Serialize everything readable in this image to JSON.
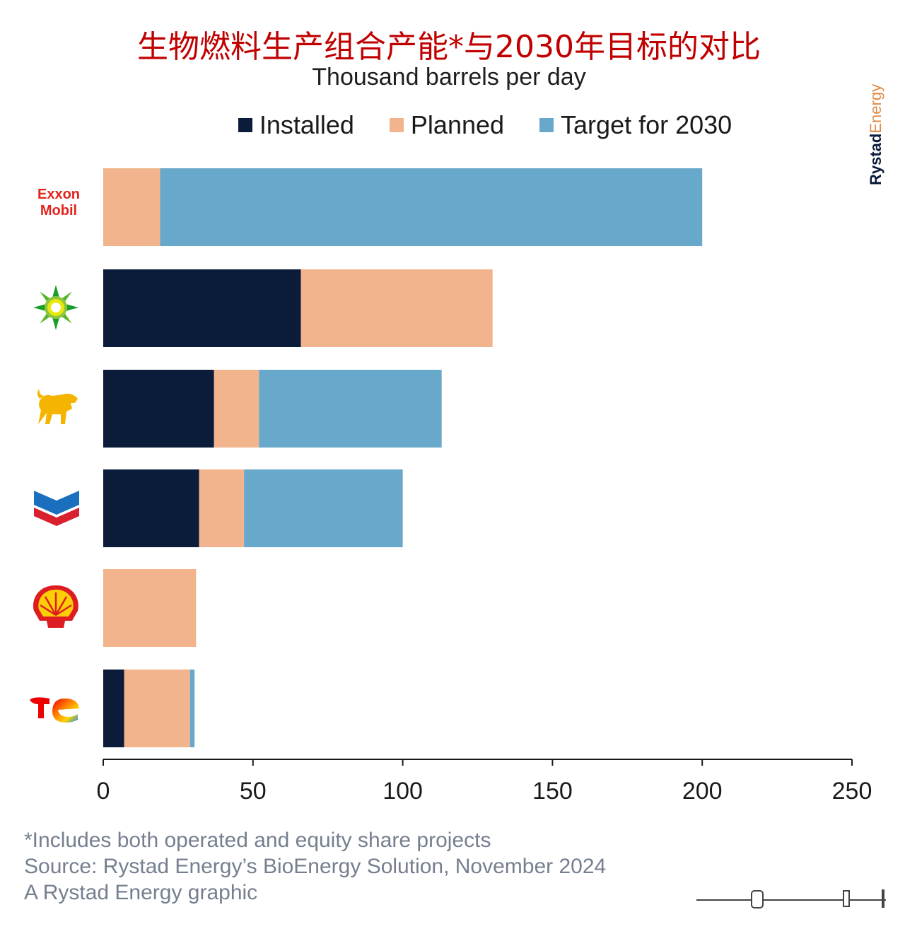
{
  "title": "生物燃料生产组合产能*与2030年目标的对比",
  "subtitle": "Thousand barrels per day",
  "brand": {
    "part1": "Rystad",
    "part2": "Energy"
  },
  "colors": {
    "installed": "#0b1b3a",
    "planned": "#f2b48c",
    "target": "#68a9cb"
  },
  "chart_data": {
    "type": "bar",
    "orientation": "horizontal",
    "stacked": true,
    "categories": [
      "ExxonMobil",
      "bp",
      "Eni",
      "Chevron",
      "Shell",
      "TotalEnergies"
    ],
    "series": [
      {
        "name": "Installed",
        "values": [
          0,
          66,
          37,
          32,
          0,
          7
        ]
      },
      {
        "name": "Planned",
        "values": [
          19,
          64,
          15,
          15,
          31,
          22
        ]
      },
      {
        "name": "Target for 2030",
        "values": [
          181,
          0,
          61,
          53,
          0,
          1.5
        ]
      }
    ],
    "xlim": [
      0,
      250
    ],
    "xticks": [
      "0",
      "50",
      "100",
      "150",
      "200",
      "250"
    ],
    "title": "生物燃料生产组合产能*与2030年目标的对比",
    "xlabel": "",
    "ylabel": "",
    "legend": "top",
    "grid": false
  },
  "logos": {
    "exxon_line1": "Exxon",
    "exxon_line2": "Mobil"
  },
  "footnotes": [
    "*Includes both operated and equity share projects",
    "Source: Rystad Energy’s BioEnergy Solution, November 2024",
    "A Rystad Energy graphic"
  ]
}
